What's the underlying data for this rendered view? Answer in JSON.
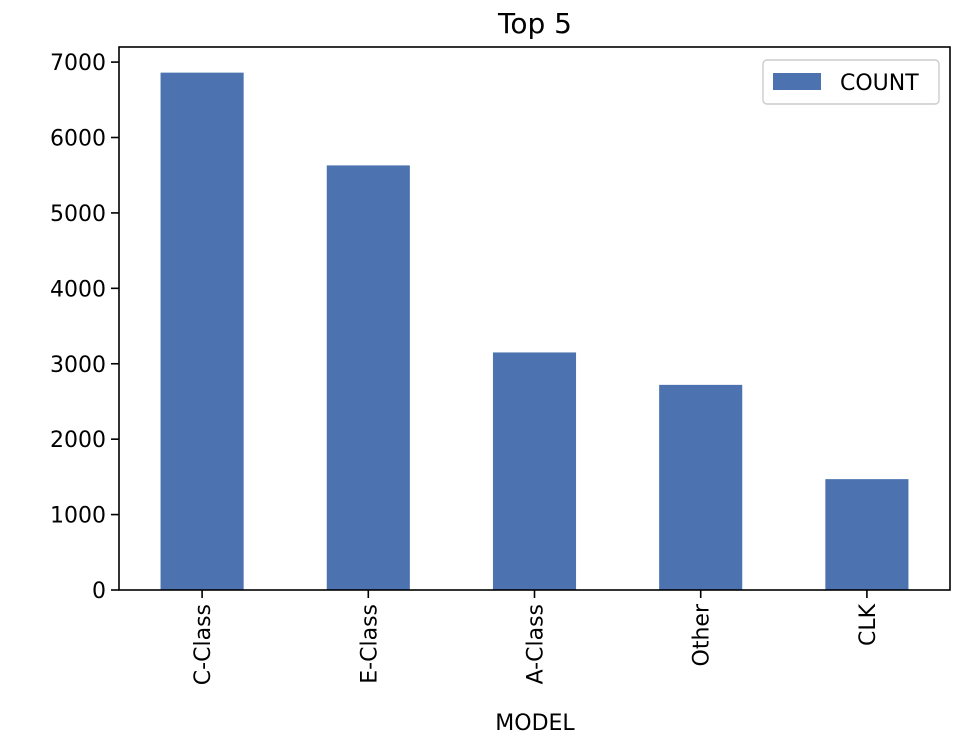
{
  "chart_data": {
    "type": "bar",
    "title": "Top 5",
    "xlabel": "MODEL",
    "ylabel": "",
    "categories": [
      "C-Class",
      "E-Class",
      "A-Class",
      "Other",
      "CLK"
    ],
    "series": [
      {
        "name": "COUNT",
        "values": [
          6860,
          5630,
          3150,
          2720,
          1470
        ],
        "color": "#4c72b0"
      }
    ],
    "ylim": [
      0,
      7200
    ],
    "yticks": [
      0,
      1000,
      2000,
      3000,
      4000,
      5000,
      6000,
      7000
    ],
    "grid": false,
    "legend": {
      "position": "top-right"
    }
  }
}
